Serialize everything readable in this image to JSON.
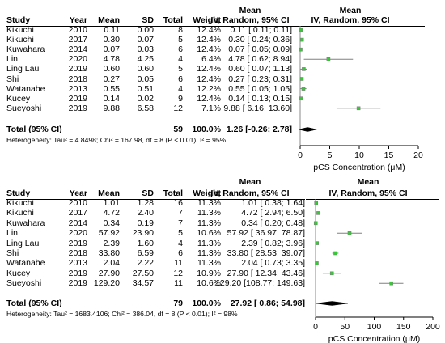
{
  "chart_data": [
    {
      "type": "forest",
      "headers": {
        "study": "Study",
        "year": "Year",
        "mean": "Mean",
        "sd": "SD",
        "total": "Total",
        "weight": "Weight",
        "ci_top": "Mean",
        "ci_bottom": "IV, Random, 95% CI",
        "plot_top": "Mean",
        "plot_bottom": "IV, Random, 95% CI"
      },
      "rows": [
        {
          "study": "Kikuchi",
          "year": "2010",
          "mean": "0.11",
          "sd": "0.00",
          "total": "8",
          "weight": "12.4%",
          "ci": "0.11 [ 0.11; 0.11]",
          "est": 0.11,
          "lo": 0.11,
          "hi": 0.11
        },
        {
          "study": "Kikuchi",
          "year": "2017",
          "mean": "0.30",
          "sd": "0.07",
          "total": "5",
          "weight": "12.4%",
          "ci": "0.30 [ 0.24; 0.36]",
          "est": 0.3,
          "lo": 0.24,
          "hi": 0.36
        },
        {
          "study": "Kuwahara",
          "year": "2014",
          "mean": "0.07",
          "sd": "0.03",
          "total": "6",
          "weight": "12.4%",
          "ci": "0.07 [ 0.05; 0.09]",
          "est": 0.07,
          "lo": 0.05,
          "hi": 0.09
        },
        {
          "study": "Lin",
          "year": "2020",
          "mean": "4.78",
          "sd": "4.25",
          "total": "4",
          "weight": "6.4%",
          "ci": "4.78 [ 0.62; 8.94]",
          "est": 4.78,
          "lo": 0.62,
          "hi": 8.94
        },
        {
          "study": "Ling Lau",
          "year": "2019",
          "mean": "0.60",
          "sd": "0.60",
          "total": "5",
          "weight": "12.4%",
          "ci": "0.60 [ 0.07; 1.13]",
          "est": 0.6,
          "lo": 0.07,
          "hi": 1.13
        },
        {
          "study": "Shi",
          "year": "2018",
          "mean": "0.27",
          "sd": "0.05",
          "total": "6",
          "weight": "12.4%",
          "ci": "0.27 [ 0.23; 0.31]",
          "est": 0.27,
          "lo": 0.23,
          "hi": 0.31
        },
        {
          "study": "Watanabe",
          "year": "2013",
          "mean": "0.55",
          "sd": "0.51",
          "total": "4",
          "weight": "12.2%",
          "ci": "0.55 [ 0.05; 1.05]",
          "est": 0.55,
          "lo": 0.05,
          "hi": 1.05
        },
        {
          "study": "Kucey",
          "year": "2019",
          "mean": "0.14",
          "sd": "0.02",
          "total": "9",
          "weight": "12.4%",
          "ci": "0.14 [ 0.13; 0.15]",
          "est": 0.14,
          "lo": 0.13,
          "hi": 0.15
        },
        {
          "study": "Sueyoshi",
          "year": "2019",
          "mean": "9.88",
          "sd": "6.58",
          "total": "12",
          "weight": "7.1%",
          "ci": "9.88 [ 6.16; 13.60]",
          "est": 9.88,
          "lo": 6.16,
          "hi": 13.6
        }
      ],
      "total": {
        "label": "Total (95% CI)",
        "total": "59",
        "weight": "100.0%",
        "ci": "1.26 [-0.26; 2.78]",
        "est": 1.26,
        "lo": -0.26,
        "hi": 2.78
      },
      "heterogeneity": "Heterogeneity: Tau² = 4.8498; Chi² = 167.98, df = 8 (P < 0.01); I² = 95%",
      "xlim": [
        0,
        20
      ],
      "xticks": [
        "0",
        "5",
        "10",
        "15",
        "20"
      ],
      "xlabel": "pCS Concentration (μM)",
      "marker_color": "#33cc33"
    },
    {
      "type": "forest",
      "headers": {
        "study": "Study",
        "year": "Year",
        "mean": "Mean",
        "sd": "SD",
        "total": "Total",
        "weight": "Weight",
        "ci_top": "Mean",
        "ci_bottom": "IV, Random, 95% CI",
        "plot_top": "Mean",
        "plot_bottom": "IV, Random, 95% CI"
      },
      "rows": [
        {
          "study": "Kikuchi",
          "year": "2010",
          "mean": "1.01",
          "sd": "1.28",
          "total": "16",
          "weight": "11.3%",
          "ci": "1.01 [ 0.38; 1.64]",
          "est": 1.01,
          "lo": 0.38,
          "hi": 1.64
        },
        {
          "study": "Kikuchi",
          "year": "2017",
          "mean": "4.72",
          "sd": "2.40",
          "total": "7",
          "weight": "11.3%",
          "ci": "4.72 [ 2.94; 6.50]",
          "est": 4.72,
          "lo": 2.94,
          "hi": 6.5
        },
        {
          "study": "Kuwahara",
          "year": "2014",
          "mean": "0.34",
          "sd": "0.19",
          "total": "7",
          "weight": "11.3%",
          "ci": "0.34 [ 0.20; 0.48]",
          "est": 0.34,
          "lo": 0.2,
          "hi": 0.48
        },
        {
          "study": "Lin",
          "year": "2020",
          "mean": "57.92",
          "sd": "23.90",
          "total": "5",
          "weight": "10.6%",
          "ci": "57.92 [ 36.97; 78.87]",
          "est": 57.92,
          "lo": 36.97,
          "hi": 78.87
        },
        {
          "study": "Ling Lau",
          "year": "2019",
          "mean": "2.39",
          "sd": "1.60",
          "total": "4",
          "weight": "11.3%",
          "ci": "2.39 [ 0.82; 3.96]",
          "est": 2.39,
          "lo": 0.82,
          "hi": 3.96
        },
        {
          "study": "Shi",
          "year": "2018",
          "mean": "33.80",
          "sd": "6.59",
          "total": "6",
          "weight": "11.3%",
          "ci": "33.80 [ 28.53; 39.07]",
          "est": 33.8,
          "lo": 28.53,
          "hi": 39.07
        },
        {
          "study": "Watanabe",
          "year": "2013",
          "mean": "2.04",
          "sd": "2.22",
          "total": "11",
          "weight": "11.3%",
          "ci": "2.04 [ 0.73; 3.35]",
          "est": 2.04,
          "lo": 0.73,
          "hi": 3.35
        },
        {
          "study": "Kucey",
          "year": "2019",
          "mean": "27.90",
          "sd": "27.50",
          "total": "12",
          "weight": "10.9%",
          "ci": "27.90 [ 12.34; 43.46]",
          "est": 27.9,
          "lo": 12.34,
          "hi": 43.46
        },
        {
          "study": "Sueyoshi",
          "year": "2019",
          "mean": "129.20",
          "sd": "34.57",
          "total": "11",
          "weight": "10.6%",
          "ci": "129.20 [108.77; 149.63]",
          "est": 129.2,
          "lo": 108.77,
          "hi": 149.63
        }
      ],
      "total": {
        "label": "Total (95% CI)",
        "total": "79",
        "weight": "100.0%",
        "ci": "27.92 [ 0.86; 54.98]",
        "est": 27.92,
        "lo": 0.86,
        "hi": 54.98
      },
      "heterogeneity": "Heterogeneity: Tau² = 1683.4106; Chi² = 386.04, df = 8 (P < 0.01); I² = 98%",
      "xlim": [
        0,
        200
      ],
      "xticks": [
        "0",
        "50",
        "100",
        "150",
        "200"
      ],
      "xlabel": "pCS Concentration (μM)",
      "marker_color": "#33cc33"
    }
  ]
}
